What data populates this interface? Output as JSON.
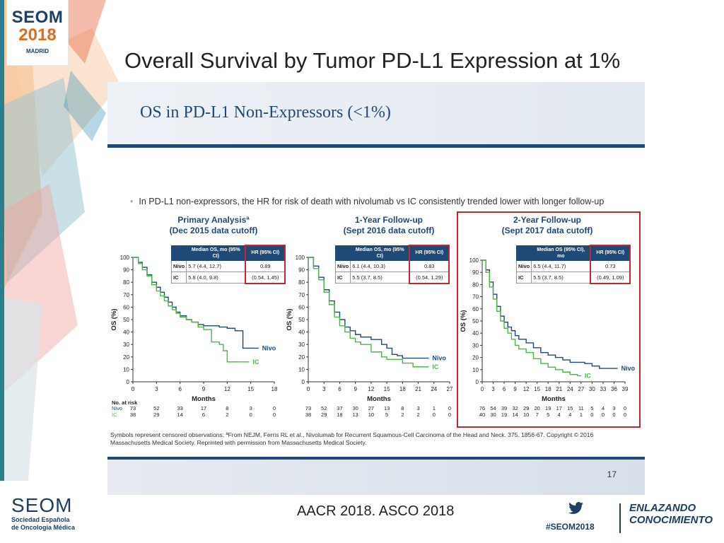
{
  "header": {
    "logo_line1": "SEOM",
    "logo_line2": "2018",
    "logo_line3": "MADRID",
    "title": "Overall Survival by Tumor PD-L1 Expression at 1%"
  },
  "slide": {
    "title": "OS in PD-L1 Non-Expressors (<1%)",
    "bullet": "In PD-L1 non-expressors, the HR for risk of death with nivolumab vs IC consistently trended lower with longer follow-up",
    "footnote": "Symbols represent censored observations; ªFrom NEJM, Ferris RL et al., Nivolumab for Recurrent Squamous-Cell Carcinoma of the Head and Neck. 375. 1856-67. Copyright © 2016 Massachusetts Medical Society. Reprinted with permission from Massachusetts Medical Society.",
    "page_number": "17"
  },
  "colors": {
    "nivo": "#1f4a78",
    "ic": "#4cb848",
    "highlight": "#c1272d",
    "header_blue": "#1f4a78"
  },
  "chart_data": [
    {
      "type": "line",
      "title": "Primary Analysisª",
      "subtitle": "(Dec 2015 data cutoff)",
      "xlabel": "Months",
      "ylabel": "OS (%)",
      "xlim": [
        0,
        18
      ],
      "ylim": [
        0,
        100
      ],
      "xticks": [
        "0",
        "3",
        "6",
        "9",
        "12",
        "15",
        "18"
      ],
      "yticks": [
        "0",
        "10",
        "20",
        "30",
        "40",
        "50",
        "60",
        "70",
        "80",
        "90",
        "100"
      ],
      "table": {
        "headers": [
          "",
          "Median OS, mo (95% CI)",
          "HR (95% CI)"
        ],
        "rows": [
          {
            "label": "Nivo",
            "median": "5.7 (4.4, 12.7)",
            "hr": "0.89"
          },
          {
            "label": "IC",
            "median": "5.8 (4.0, 9.8)",
            "hr": "(0.54, 1.45)"
          }
        ]
      },
      "series": [
        {
          "name": "Nivo",
          "points": [
            [
              0,
              100
            ],
            [
              0.7,
              96
            ],
            [
              1.2,
              92
            ],
            [
              1.8,
              86
            ],
            [
              2.4,
              80
            ],
            [
              3,
              76
            ],
            [
              3.5,
              72
            ],
            [
              4,
              68
            ],
            [
              4.5,
              64
            ],
            [
              5,
              60
            ],
            [
              5.5,
              56
            ],
            [
              6,
              53
            ],
            [
              6.8,
              50
            ],
            [
              7.5,
              48
            ],
            [
              8.3,
              46
            ],
            [
              9,
              45
            ],
            [
              10,
              45
            ],
            [
              11,
              44
            ],
            [
              12,
              43
            ],
            [
              13,
              41
            ],
            [
              14,
              27
            ],
            [
              15,
              27
            ],
            [
              16,
              27
            ]
          ]
        },
        {
          "name": "IC",
          "points": [
            [
              0,
              100
            ],
            [
              0.7,
              95
            ],
            [
              1.2,
              90
            ],
            [
              1.8,
              85
            ],
            [
              2.4,
              78
            ],
            [
              3,
              73
            ],
            [
              3.5,
              69
            ],
            [
              4,
              65
            ],
            [
              4.5,
              61
            ],
            [
              5,
              58
            ],
            [
              5.5,
              55
            ],
            [
              6,
              52
            ],
            [
              6.8,
              50
            ],
            [
              7.5,
              48
            ],
            [
              8.3,
              44
            ],
            [
              9,
              42
            ],
            [
              10,
              32
            ],
            [
              11,
              30
            ],
            [
              11.5,
              25
            ],
            [
              12,
              16
            ],
            [
              13,
              16
            ],
            [
              14,
              16
            ],
            [
              14.8,
              16
            ]
          ]
        }
      ],
      "at_risk": {
        "header": "No. at risk",
        "nivo": [
          "73",
          "52",
          "33",
          "17",
          "8",
          "3",
          "0"
        ],
        "ic": [
          "38",
          "29",
          "14",
          "6",
          "2",
          "0",
          "0"
        ]
      }
    },
    {
      "type": "line",
      "title": "1-Year Follow-up",
      "subtitle": "(Sept 2016 data cutoff)",
      "xlabel": "Months",
      "ylabel": "OS (%)",
      "xlim": [
        0,
        27
      ],
      "ylim": [
        0,
        100
      ],
      "xticks": [
        "0",
        "3",
        "6",
        "9",
        "12",
        "15",
        "18",
        "21",
        "24",
        "27"
      ],
      "yticks": [
        "0",
        "10",
        "20",
        "30",
        "40",
        "50",
        "60",
        "70",
        "80",
        "90",
        "100"
      ],
      "table": {
        "headers": [
          "",
          "Median OS, mo (95% CI)",
          "HR (95% CI)"
        ],
        "rows": [
          {
            "label": "Nivo",
            "median": "6.1 (4.4, 10.3)",
            "hr": "0.83"
          },
          {
            "label": "IC",
            "median": "5.5 (3.7, 8.5)",
            "hr": "(0.54, 1.29)"
          }
        ]
      },
      "series": [
        {
          "name": "Nivo",
          "points": [
            [
              0,
              100
            ],
            [
              1,
              93
            ],
            [
              2,
              84
            ],
            [
              3,
              74
            ],
            [
              4,
              65
            ],
            [
              5,
              56
            ],
            [
              6,
              50
            ],
            [
              7,
              44
            ],
            [
              8,
              41
            ],
            [
              9,
              38
            ],
            [
              10,
              36
            ],
            [
              12,
              34
            ],
            [
              14,
              30
            ],
            [
              15,
              27
            ],
            [
              16,
              22
            ],
            [
              17,
              21
            ],
            [
              18,
              19
            ],
            [
              20,
              19
            ],
            [
              22,
              19
            ],
            [
              23,
              19
            ]
          ]
        },
        {
          "name": "IC",
          "points": [
            [
              0,
              100
            ],
            [
              1,
              91
            ],
            [
              2,
              82
            ],
            [
              3,
              72
            ],
            [
              4,
              62
            ],
            [
              5,
              52
            ],
            [
              6,
              45
            ],
            [
              7,
              40
            ],
            [
              8,
              35
            ],
            [
              9,
              32
            ],
            [
              10,
              30
            ],
            [
              12,
              24
            ],
            [
              14,
              20
            ],
            [
              15,
              18
            ],
            [
              16,
              18
            ],
            [
              18,
              15
            ],
            [
              20,
              12
            ],
            [
              22,
              12
            ],
            [
              23,
              12
            ]
          ]
        }
      ],
      "at_risk": {
        "header": "",
        "nivo": [
          "73",
          "52",
          "37",
          "30",
          "27",
          "13",
          "8",
          "3",
          "1",
          "0"
        ],
        "ic": [
          "38",
          "29",
          "18",
          "13",
          "10",
          "5",
          "2",
          "2",
          "0",
          "0"
        ]
      }
    },
    {
      "type": "line",
      "title": "2-Year Follow-up",
      "subtitle": "(Sept 2017 data cutoff)",
      "xlabel": "Months",
      "ylabel": "OS (%)",
      "xlim": [
        0,
        39
      ],
      "ylim": [
        0,
        100
      ],
      "xticks": [
        "0",
        "3",
        "6",
        "9",
        "12",
        "15",
        "18",
        "21",
        "24",
        "27",
        "30",
        "33",
        "36",
        "39"
      ],
      "yticks": [
        "0",
        "10",
        "20",
        "30",
        "40",
        "50",
        "60",
        "70",
        "80",
        "90",
        "100"
      ],
      "table": {
        "headers": [
          "",
          "Median OS (95% CI), mo",
          "HR (95% CI)"
        ],
        "rows": [
          {
            "label": "Nivo",
            "median": "6.5 (4.4, 11.7)",
            "hr": "0.73"
          },
          {
            "label": "IC",
            "median": "5.5 (3.7, 8.5)",
            "hr": "(0.49, 1.09)"
          }
        ]
      },
      "series": [
        {
          "name": "Nivo",
          "points": [
            [
              0,
              100
            ],
            [
              1,
              92
            ],
            [
              2,
              82
            ],
            [
              3,
              72
            ],
            [
              4,
              62
            ],
            [
              5,
              54
            ],
            [
              6,
              49
            ],
            [
              7,
              45
            ],
            [
              8,
              42
            ],
            [
              9,
              38
            ],
            [
              10,
              35
            ],
            [
              12,
              32
            ],
            [
              14,
              28
            ],
            [
              16,
              24
            ],
            [
              18,
              22
            ],
            [
              20,
              20
            ],
            [
              22,
              18
            ],
            [
              24,
              16
            ],
            [
              26,
              16
            ],
            [
              28,
              15
            ],
            [
              30,
              13
            ],
            [
              32,
              11
            ],
            [
              34,
              11
            ],
            [
              36,
              11
            ],
            [
              37,
              11
            ]
          ]
        },
        {
          "name": "IC",
          "points": [
            [
              0,
              100
            ],
            [
              1,
              90
            ],
            [
              2,
              78
            ],
            [
              3,
              68
            ],
            [
              4,
              58
            ],
            [
              5,
              50
            ],
            [
              6,
              44
            ],
            [
              7,
              40
            ],
            [
              8,
              35
            ],
            [
              9,
              30
            ],
            [
              10,
              27
            ],
            [
              12,
              24
            ],
            [
              14,
              19
            ],
            [
              16,
              15
            ],
            [
              18,
              12
            ],
            [
              20,
              10
            ],
            [
              22,
              8
            ],
            [
              24,
              6
            ],
            [
              26,
              5
            ],
            [
              27,
              5
            ]
          ]
        }
      ],
      "at_risk": {
        "header": "",
        "nivo": [
          "76",
          "54",
          "39",
          "32",
          "29",
          "20",
          "19",
          "17",
          "15",
          "11",
          "5",
          "4",
          "3",
          "0"
        ],
        "ic": [
          "40",
          "30",
          "19",
          "14",
          "10",
          "7",
          "5",
          "4",
          "4",
          "1",
          "0",
          "0",
          "0",
          "0"
        ]
      }
    }
  ],
  "footer": {
    "seom_name": "SEOM",
    "seom_line1": "Sociedad Española",
    "seom_line2": "de Oncología Médica",
    "conference": "AACR 2018. ASCO 2018",
    "hashtag": "#SEOM2018",
    "slogan_line1": "ENLAZANDO",
    "slogan_line2": "CONOCIMIENTO"
  }
}
